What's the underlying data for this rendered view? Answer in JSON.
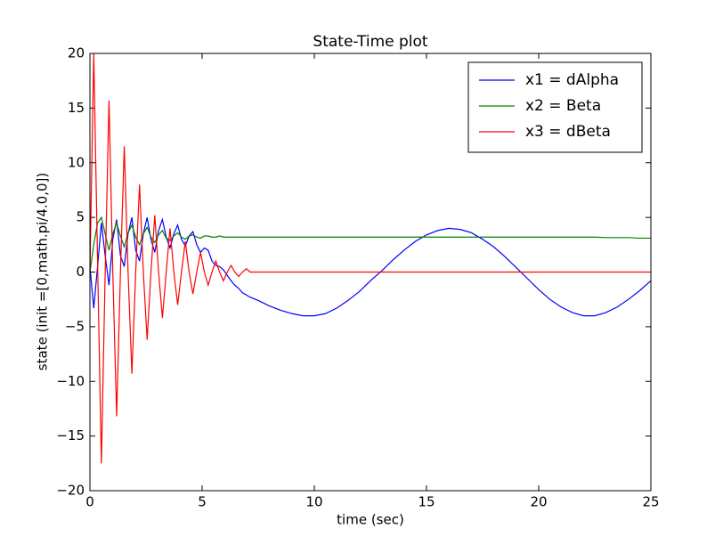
{
  "chart_data": {
    "type": "line",
    "title": "State-Time plot",
    "x_label": "time (sec)",
    "y_label": "state (init =[0,math.pi/4.0,0])",
    "x": [
      0,
      0.17,
      0.34,
      0.51,
      0.68,
      0.85,
      1.02,
      1.19,
      1.36,
      1.53,
      1.7,
      1.87,
      2.04,
      2.21,
      2.38,
      2.55,
      2.72,
      2.89,
      3.06,
      3.23,
      3.4,
      3.57,
      3.74,
      3.91,
      4.08,
      4.25,
      4.42,
      4.59,
      4.76,
      4.93,
      5.1,
      5.27,
      5.44,
      5.61,
      5.78,
      5.95,
      6.12,
      6.29,
      6.46,
      6.63,
      6.8,
      6.97,
      7.14,
      7.5,
      8,
      8.5,
      9,
      9.5,
      10,
      10.5,
      11,
      11.5,
      12,
      12.5,
      13,
      13.5,
      14,
      14.5,
      15,
      15.5,
      16,
      16.5,
      17,
      17.5,
      18,
      18.5,
      19,
      19.5,
      20,
      20.5,
      21,
      21.5,
      22,
      22.5,
      23,
      23.5,
      24,
      24.5,
      25
    ],
    "series": [
      {
        "name": "x1 = dAlpha",
        "color": "#0000ff",
        "values": [
          0.5,
          -3.3,
          0.5,
          4.5,
          1.5,
          -1.2,
          3,
          4.8,
          1.5,
          0.5,
          3.5,
          5,
          2,
          1,
          3.5,
          5,
          3,
          1.8,
          3.8,
          4.8,
          3.2,
          2.2,
          3.5,
          4.3,
          3,
          2.4,
          3.3,
          3.7,
          2.5,
          1.8,
          2.2,
          2,
          1,
          0.6,
          0.5,
          0.2,
          -0.3,
          -0.8,
          -1.2,
          -1.5,
          -1.9,
          -2.1,
          -2.3,
          -2.6,
          -3.1,
          -3.5,
          -3.8,
          -4.0,
          -4.0,
          -3.8,
          -3.3,
          -2.6,
          -1.8,
          -0.8,
          0.1,
          1.1,
          2.0,
          2.8,
          3.4,
          3.8,
          4.0,
          3.9,
          3.6,
          3.0,
          2.3,
          1.4,
          0.4,
          -0.6,
          -1.6,
          -2.5,
          -3.2,
          -3.7,
          -4.0,
          -4.0,
          -3.7,
          -3.2,
          -2.5,
          -1.7,
          -0.8
        ]
      },
      {
        "name": "x2 = Beta",
        "color": "#008000",
        "values": [
          0,
          2.5,
          4.5,
          5,
          3.5,
          2,
          3.5,
          4.5,
          3.3,
          2.3,
          3.6,
          4.3,
          3.2,
          2.5,
          3.5,
          4.1,
          3.2,
          2.7,
          3.4,
          3.8,
          3.1,
          2.9,
          3.3,
          3.6,
          3.2,
          3.0,
          3.3,
          3.4,
          3.2,
          3.1,
          3.3,
          3.3,
          3.2,
          3.2,
          3.3,
          3.2,
          3.2,
          3.2,
          3.2,
          3.2,
          3.2,
          3.2,
          3.2,
          3.2,
          3.2,
          3.2,
          3.2,
          3.2,
          3.2,
          3.2,
          3.2,
          3.2,
          3.2,
          3.2,
          3.2,
          3.2,
          3.2,
          3.2,
          3.2,
          3.2,
          3.2,
          3.2,
          3.2,
          3.2,
          3.2,
          3.2,
          3.2,
          3.2,
          3.2,
          3.2,
          3.2,
          3.2,
          3.2,
          3.2,
          3.15,
          3.15,
          3.15,
          3.1,
          3.1
        ]
      },
      {
        "name": "x3 = dBeta",
        "color": "#ff0000",
        "values": [
          0,
          20,
          1,
          -17.5,
          0,
          15.7,
          0,
          -13.2,
          0,
          11.5,
          0,
          -9.3,
          0,
          8,
          0,
          -6.2,
          0,
          5.2,
          0,
          -4.2,
          0,
          4,
          0,
          -3,
          0,
          2.8,
          0,
          -2,
          0,
          1.8,
          0,
          -1.2,
          0,
          1,
          0,
          -0.8,
          0,
          0.6,
          0,
          -0.4,
          0,
          0.3,
          0,
          0,
          0,
          0,
          0,
          0,
          0,
          0,
          0,
          0,
          0,
          0,
          0,
          0,
          0,
          0,
          0,
          0,
          0,
          0,
          0,
          0,
          0,
          0,
          0,
          0,
          0,
          0,
          0,
          0,
          0,
          0,
          0,
          0,
          0,
          0,
          0
        ]
      }
    ],
    "xlim": [
      0,
      25
    ],
    "xticks": [
      0,
      5,
      10,
      15,
      20,
      25
    ],
    "ylim": [
      -20,
      20
    ],
    "yticks": [
      {
        "value": -20,
        "label": "−20"
      },
      {
        "value": -15,
        "label": "−15"
      },
      {
        "value": -10,
        "label": "−10"
      },
      {
        "value": -5,
        "label": "−5"
      },
      0,
      5,
      10,
      15,
      20
    ],
    "grid": false,
    "legend": "upper right"
  }
}
